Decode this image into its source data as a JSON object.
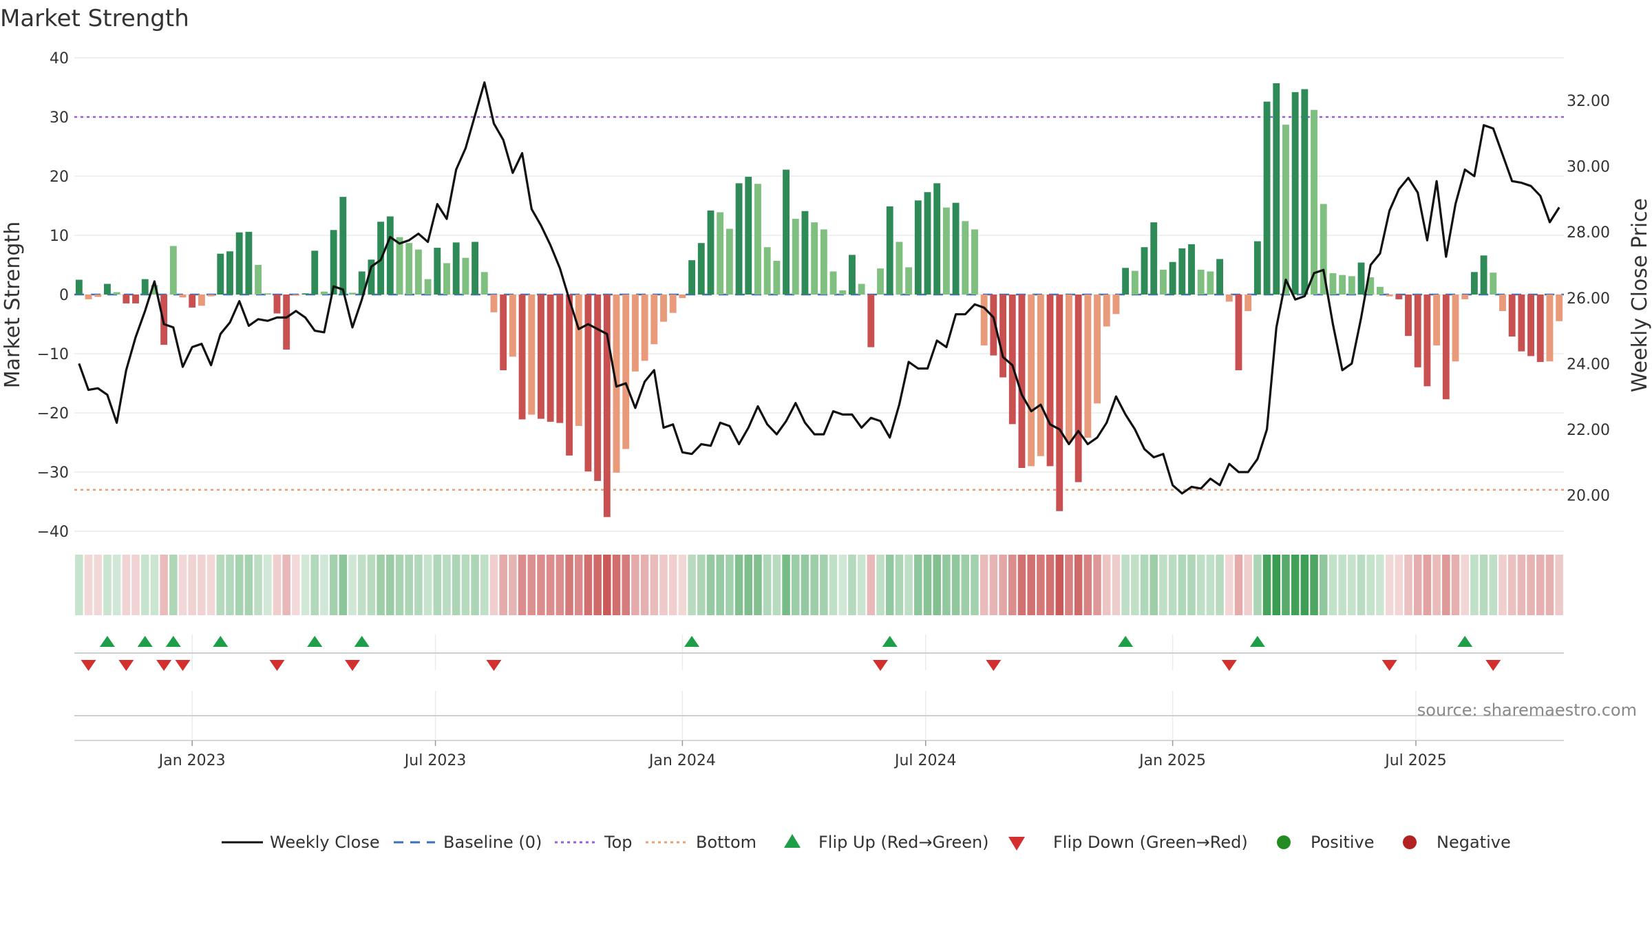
{
  "title": "Market Strength",
  "source_note": "source: sharemaestro.com",
  "colors": {
    "strong_green": "#2e8b57",
    "light_green": "#7fbf7f",
    "strong_red": "#c85050",
    "light_red": "#e89a7a",
    "line": "#111111",
    "baseline": "#3b6fb6",
    "top": "#9a5fd0",
    "bottom": "#e8a070",
    "flip_up": "#1f9e4a",
    "flip_down": "#d32f2f",
    "positive": "#228b22",
    "negative": "#b22222"
  },
  "chart_data": {
    "type": "bar",
    "title": "Market Strength",
    "ylabel": "Market Strength",
    "y2label": "Weekly Close Price",
    "ylim": [
      -40,
      40
    ],
    "y2lim": [
      18.9,
      33.3
    ],
    "yticks": [
      "40",
      "30",
      "20",
      "10",
      "0",
      "−10",
      "−20",
      "−30",
      "−40"
    ],
    "y2ticks": [
      "32.00",
      "30.00",
      "28.00",
      "26.00",
      "24.00",
      "22.00",
      "20.00"
    ],
    "xticks": [
      "Jan 2023",
      "Jul 2023",
      "Jan 2024",
      "Jul 2024",
      "Jan 2025",
      "Jul 2025"
    ],
    "top_level": 30,
    "bottom_level": -33,
    "strength": [
      2.5,
      -0.8,
      -0.4,
      1.8,
      0.4,
      -1.5,
      -1.5,
      2.6,
      1.6,
      -8.5,
      8.2,
      -0.5,
      -2.2,
      -1.9,
      -0.3,
      6.9,
      7.3,
      10.5,
      10.6,
      5.0,
      0.2,
      -3.2,
      -9.3,
      -0.2,
      0.2,
      7.4,
      0.5,
      10.9,
      16.5,
      0.3,
      3.9,
      5.9,
      12.3,
      13.2,
      9.7,
      8.7,
      7.6,
      2.6,
      7.9,
      5.3,
      8.8,
      6.2,
      8.9,
      3.8,
      -3.0,
      -12.8,
      -10.5,
      -21.1,
      -20.3,
      -21.0,
      -21.5,
      -21.7,
      -27.2,
      -22.2,
      -29.9,
      -31.5,
      -37.6,
      -30.1,
      -26.1,
      -13.0,
      -11.2,
      -8.4,
      -4.6,
      -3.1,
      -0.6,
      5.8,
      8.7,
      14.2,
      13.9,
      11.1,
      18.8,
      19.9,
      18.7,
      8.0,
      5.7,
      21.1,
      12.8,
      14.1,
      12.2,
      11.0,
      3.9,
      0.7,
      6.7,
      1.8,
      -8.9,
      4.4,
      14.9,
      8.9,
      4.6,
      15.9,
      17.3,
      18.8,
      14.7,
      15.5,
      12.4,
      11.0,
      -8.6,
      -10.3,
      -14.0,
      -21.9,
      -29.3,
      -29.0,
      -27.3,
      -29.0,
      -36.6,
      -24.9,
      -31.7,
      -24.2,
      -18.4,
      -5.4,
      -3.3,
      4.5,
      4.0,
      8.0,
      12.2,
      4.2,
      5.5,
      7.8,
      8.5,
      4.2,
      3.9,
      6.0,
      -1.2,
      -12.8,
      -2.8,
      9.0,
      32.6,
      35.7,
      28.7,
      34.2,
      34.7,
      31.2,
      15.3,
      3.6,
      3.3,
      3.1,
      5.4,
      2.9,
      1.3,
      -0.3,
      -0.8,
      -7.0,
      -12.3,
      -15.5,
      -8.6,
      -17.7,
      -11.3,
      -0.8,
      3.8,
      6.6,
      3.7,
      -2.8,
      -7.1,
      -9.6,
      -10.4,
      -11.4,
      -11.3,
      -4.5
    ],
    "close": [
      24.0,
      23.2,
      23.25,
      23.05,
      22.2,
      23.8,
      24.8,
      25.6,
      26.5,
      25.2,
      25.1,
      23.9,
      24.5,
      24.6,
      23.95,
      24.9,
      25.25,
      25.9,
      25.15,
      25.35,
      25.3,
      25.4,
      25.4,
      25.6,
      25.4,
      25.0,
      24.95,
      26.35,
      26.25,
      25.1,
      25.95,
      26.95,
      27.15,
      27.85,
      27.65,
      27.75,
      27.95,
      27.7,
      28.85,
      28.4,
      29.9,
      30.55,
      31.55,
      32.55,
      31.3,
      30.8,
      29.8,
      30.4,
      28.7,
      28.2,
      27.6,
      26.9,
      25.95,
      25.05,
      25.2,
      25.05,
      24.9,
      23.3,
      23.4,
      22.65,
      23.45,
      23.8,
      22.05,
      22.15,
      21.3,
      21.25,
      21.55,
      21.5,
      22.2,
      22.1,
      21.55,
      22.05,
      22.7,
      22.15,
      21.85,
      22.25,
      22.8,
      22.2,
      21.85,
      21.85,
      22.55,
      22.45,
      22.45,
      22.05,
      22.35,
      22.25,
      21.75,
      22.75,
      24.05,
      23.85,
      23.85,
      24.7,
      24.5,
      25.5,
      25.5,
      25.8,
      25.7,
      25.4,
      24.2,
      23.95,
      23.05,
      22.55,
      22.75,
      22.15,
      22.0,
      21.55,
      21.95,
      21.55,
      21.75,
      22.2,
      23.0,
      22.45,
      22.0,
      21.4,
      21.15,
      21.25,
      20.3,
      20.05,
      20.25,
      20.2,
      20.5,
      20.3,
      20.95,
      20.7,
      20.7,
      21.1,
      22.0,
      25.1,
      26.55,
      25.95,
      26.05,
      26.75,
      26.85,
      25.2,
      23.8,
      24.0,
      25.4,
      27.0,
      27.35,
      28.65,
      29.3,
      29.65,
      29.2,
      27.75,
      29.55,
      27.25,
      28.85,
      29.9,
      29.7,
      31.25,
      31.15,
      30.35,
      29.55,
      29.5,
      29.4,
      29.1,
      28.3,
      28.75
    ],
    "flip_up_index": [
      3,
      7,
      10,
      15,
      25,
      30,
      65,
      86,
      111,
      125,
      147
    ],
    "flip_down_index": [
      1,
      5,
      9,
      11,
      21,
      29,
      44,
      85,
      97,
      122,
      139,
      150
    ],
    "legend": [
      {
        "label": "Weekly Close",
        "kind": "line"
      },
      {
        "label": "Baseline (0)",
        "kind": "dashed"
      },
      {
        "label": "Top",
        "kind": "dotted-purple"
      },
      {
        "label": "Bottom",
        "kind": "dotted-orange"
      },
      {
        "label": "Flip Up (Red→Green)",
        "kind": "triangle-up"
      },
      {
        "label": "Flip Down (Green→Red)",
        "kind": "triangle-down"
      },
      {
        "label": "Positive",
        "kind": "dot-green"
      },
      {
        "label": "Negative",
        "kind": "dot-red"
      }
    ]
  }
}
